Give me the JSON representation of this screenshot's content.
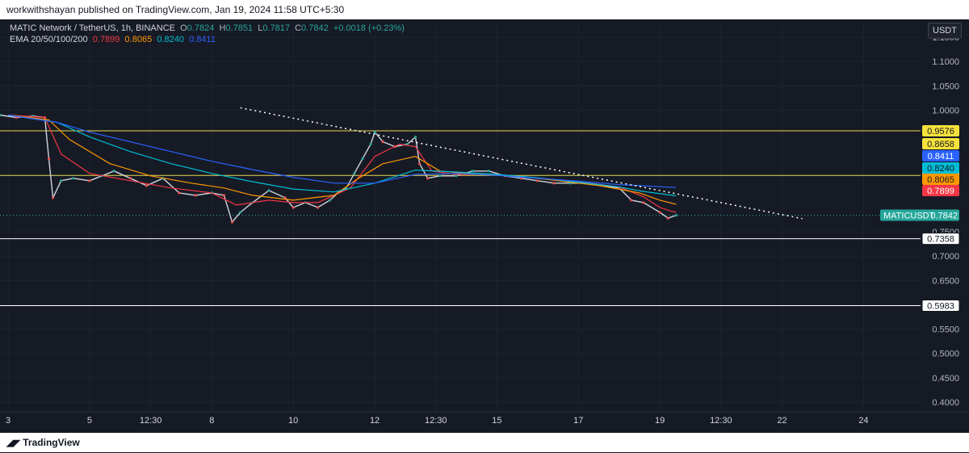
{
  "header": {
    "publisher_line": "workwithshayan published on TradingView.com, Jan 19, 2024 11:58 UTC+5:30"
  },
  "footer": {
    "brand": "TradingView"
  },
  "legend": {
    "symbol_line": "MATIC Network / TetherUS, 1h, BINANCE",
    "o_label": "O",
    "o_value": "0.7824",
    "h_label": "H",
    "h_value": "0.7851",
    "l_label": "L",
    "l_value": "0.7817",
    "c_label": "C",
    "c_value": "0.7842",
    "change": "+0.0018 (+0.23%)",
    "ema_label": "EMA 20/50/100/200",
    "ema20": "0.7899",
    "ema50": "0.8065",
    "ema100": "0.8240",
    "ema200": "0.8411"
  },
  "currency_button": "USDT",
  "colors": {
    "ema20": "#f23645",
    "ema50": "#ff9800",
    "ema100": "#00bcd4",
    "ema200": "#2962ff",
    "up": "#26a69a",
    "down": "#ef5350",
    "hline_yellow": "#e6d94f",
    "hline_white": "#ffffff"
  },
  "chart_data": {
    "type": "line",
    "title": "MATIC Network / TetherUS, 1h, BINANCE",
    "ylim": [
      0.38,
      1.18
    ],
    "y_ticks": [
      "1.1500",
      "1.1000",
      "1.0500",
      "1.0000",
      "0.7500",
      "0.7000",
      "0.6500",
      "0.6000",
      "0.5500",
      "0.5000",
      "0.4500",
      "0.4000"
    ],
    "x_tick_labels": [
      "3",
      "5",
      "12:30",
      "8",
      "10",
      "12",
      "12:30",
      "15",
      "17",
      "19",
      "12:30",
      "22",
      "24"
    ],
    "x_tick_positions": [
      0,
      2,
      3.5,
      5,
      7,
      9,
      10.5,
      12,
      14,
      16,
      17.5,
      19,
      21
    ],
    "x_range": [
      -0.2,
      22.4
    ],
    "horizontal_lines": [
      {
        "value": 0.9576,
        "label": "0.9576",
        "color": "#e6d94f"
      },
      {
        "value": 0.8658,
        "label": "0.8658",
        "color": "#e6d94f"
      },
      {
        "value": 0.7358,
        "label": "0.7358",
        "color": "#ffffff"
      },
      {
        "value": 0.5983,
        "label": "0.5983",
        "color": "#ffffff"
      }
    ],
    "price_badges": [
      {
        "label": "0.8658",
        "value": 0.8658,
        "bg": "#f5e13b",
        "fg": "#131722"
      },
      {
        "label": "0.8411",
        "value": 0.8411,
        "bg": "#2962ff",
        "fg": "#ffffff"
      },
      {
        "label": "0.8240",
        "value": 0.824,
        "bg": "#00bcd4",
        "fg": "#131722"
      },
      {
        "label": "0.8065",
        "value": 0.8065,
        "bg": "#ff9800",
        "fg": "#131722"
      },
      {
        "label": "0.7899",
        "value": 0.7899,
        "bg": "#f23645",
        "fg": "#ffffff"
      }
    ],
    "last_price": {
      "symbol": "MATICUSDT",
      "value": 0.7842,
      "label": "0.7842"
    },
    "trendline": {
      "x": [
        5.7,
        19.5
      ],
      "y": [
        1.005,
        0.777
      ]
    },
    "series": [
      {
        "name": "Price",
        "color": "#d1d4dc",
        "x": [
          -0.2,
          0.2,
          0.6,
          0.9,
          1.0,
          1.1,
          1.3,
          1.6,
          2.0,
          2.3,
          2.6,
          3.0,
          3.4,
          3.8,
          4.2,
          4.6,
          5.0,
          5.3,
          5.5,
          5.7,
          6.0,
          6.4,
          6.8,
          7.0,
          7.3,
          7.6,
          7.9,
          8.1,
          8.3,
          8.5,
          8.7,
          8.9,
          9.0,
          9.2,
          9.5,
          9.8,
          10.0,
          10.1,
          10.3,
          10.6,
          11.0,
          11.4,
          11.8,
          12.2,
          12.6,
          13.0,
          13.4,
          13.8,
          14.2,
          14.6,
          15.0,
          15.3,
          15.6,
          16.0,
          16.2,
          16.4
        ],
        "y": [
          0.99,
          0.985,
          0.988,
          0.985,
          0.9,
          0.82,
          0.855,
          0.86,
          0.855,
          0.865,
          0.875,
          0.86,
          0.845,
          0.86,
          0.83,
          0.825,
          0.83,
          0.825,
          0.77,
          0.79,
          0.81,
          0.835,
          0.82,
          0.8,
          0.81,
          0.8,
          0.815,
          0.83,
          0.84,
          0.87,
          0.9,
          0.93,
          0.955,
          0.935,
          0.925,
          0.93,
          0.945,
          0.89,
          0.86,
          0.865,
          0.865,
          0.875,
          0.875,
          0.865,
          0.86,
          0.855,
          0.85,
          0.85,
          0.85,
          0.845,
          0.84,
          0.815,
          0.81,
          0.79,
          0.778,
          0.784
        ]
      },
      {
        "name": "EMA 20",
        "color": "#f23645",
        "x": [
          0.0,
          0.9,
          1.3,
          2.0,
          3.0,
          4.0,
          5.0,
          5.6,
          6.4,
          7.0,
          7.6,
          8.4,
          9.0,
          9.6,
          10.0,
          10.4,
          11.0,
          12.0,
          13.0,
          14.0,
          15.0,
          15.6,
          16.0,
          16.3,
          16.4
        ],
        "y": [
          0.99,
          0.985,
          0.91,
          0.87,
          0.855,
          0.84,
          0.83,
          0.805,
          0.815,
          0.81,
          0.81,
          0.84,
          0.905,
          0.93,
          0.925,
          0.875,
          0.868,
          0.868,
          0.86,
          0.853,
          0.842,
          0.822,
          0.8,
          0.792,
          0.79
        ]
      },
      {
        "name": "EMA 50",
        "color": "#ff9800",
        "x": [
          0.0,
          1.0,
          1.5,
          2.5,
          3.5,
          4.5,
          5.3,
          6.0,
          7.0,
          8.0,
          8.6,
          9.2,
          10.0,
          10.6,
          11.5,
          12.5,
          13.5,
          14.5,
          15.5,
          16.0,
          16.4
        ],
        "y": [
          0.99,
          0.98,
          0.94,
          0.89,
          0.865,
          0.85,
          0.84,
          0.825,
          0.815,
          0.825,
          0.86,
          0.89,
          0.905,
          0.875,
          0.868,
          0.865,
          0.855,
          0.845,
          0.83,
          0.815,
          0.8065
        ]
      },
      {
        "name": "EMA 100",
        "color": "#00bcd4",
        "x": [
          0.0,
          1.2,
          2.0,
          3.0,
          4.0,
          5.0,
          6.0,
          7.0,
          8.0,
          9.0,
          10.0,
          11.0,
          12.0,
          13.0,
          14.0,
          15.0,
          15.6,
          16.4
        ],
        "y": [
          0.99,
          0.975,
          0.945,
          0.915,
          0.89,
          0.87,
          0.853,
          0.838,
          0.832,
          0.85,
          0.877,
          0.873,
          0.868,
          0.861,
          0.852,
          0.842,
          0.833,
          0.824
        ]
      },
      {
        "name": "EMA 200",
        "color": "#2962ff",
        "x": [
          0.0,
          1.2,
          2.0,
          3.0,
          4.0,
          5.0,
          6.0,
          7.0,
          8.0,
          9.0,
          10.0,
          11.0,
          12.0,
          13.0,
          14.0,
          15.0,
          16.4
        ],
        "y": [
          0.99,
          0.975,
          0.955,
          0.935,
          0.915,
          0.895,
          0.878,
          0.862,
          0.85,
          0.85,
          0.868,
          0.87,
          0.866,
          0.86,
          0.854,
          0.847,
          0.8411
        ]
      }
    ]
  }
}
